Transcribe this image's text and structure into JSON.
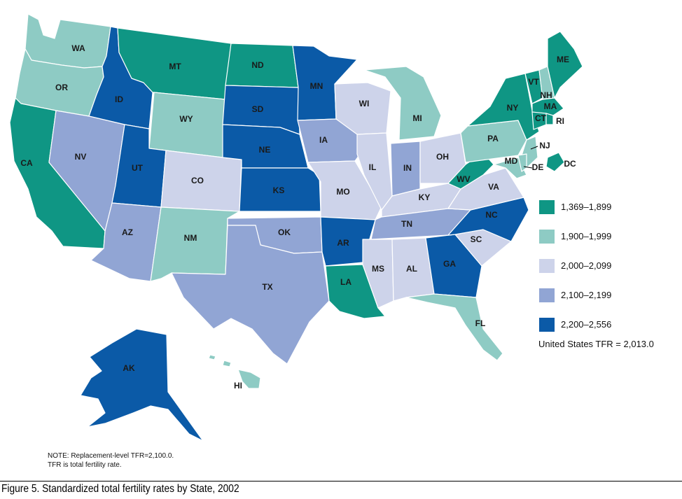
{
  "caption": "Figure 5. Standardized total fertility rates by State, 2002",
  "note_line1": "NOTE: Replacement-level TFR=2,100.0.",
  "note_line2": "TFR is total fertility rate.",
  "us_tfr": "United States TFR = 2,013.0",
  "colors": {
    "c1": "#0f9684",
    "c2": "#8ecbc4",
    "c3": "#cdd3ea",
    "c4": "#91a5d4",
    "c5": "#0b5aa7"
  },
  "legend": [
    {
      "label": "1,369–1,899",
      "class": "c1"
    },
    {
      "label": "1,900–1,999",
      "class": "c2"
    },
    {
      "label": "2,000–2,099",
      "class": "c3"
    },
    {
      "label": "2,100–2,199",
      "class": "c4"
    },
    {
      "label": "2,200–2,556",
      "class": "c5"
    }
  ],
  "states": {
    "WA": {
      "label": "WA",
      "class": "c2"
    },
    "OR": {
      "label": "OR",
      "class": "c2"
    },
    "CA": {
      "label": "CA",
      "class": "c1"
    },
    "ID": {
      "label": "ID",
      "class": "c5"
    },
    "NV": {
      "label": "NV",
      "class": "c4"
    },
    "MT": {
      "label": "MT",
      "class": "c1"
    },
    "WY": {
      "label": "WY",
      "class": "c2"
    },
    "UT": {
      "label": "UT",
      "class": "c5"
    },
    "AZ": {
      "label": "AZ",
      "class": "c4"
    },
    "CO": {
      "label": "CO",
      "class": "c3"
    },
    "NM": {
      "label": "NM",
      "class": "c2"
    },
    "ND": {
      "label": "ND",
      "class": "c1"
    },
    "SD": {
      "label": "SD",
      "class": "c5"
    },
    "NE": {
      "label": "NE",
      "class": "c5"
    },
    "KS": {
      "label": "KS",
      "class": "c5"
    },
    "OK": {
      "label": "OK",
      "class": "c4"
    },
    "TX": {
      "label": "TX",
      "class": "c4"
    },
    "MN": {
      "label": "MN",
      "class": "c5"
    },
    "IA": {
      "label": "IA",
      "class": "c4"
    },
    "MO": {
      "label": "MO",
      "class": "c3"
    },
    "AR": {
      "label": "AR",
      "class": "c5"
    },
    "LA": {
      "label": "LA",
      "class": "c1"
    },
    "WI": {
      "label": "WI",
      "class": "c3"
    },
    "IL": {
      "label": "IL",
      "class": "c3"
    },
    "MI": {
      "label": "MI",
      "class": "c2"
    },
    "IN": {
      "label": "IN",
      "class": "c4"
    },
    "OH": {
      "label": "OH",
      "class": "c3"
    },
    "KY": {
      "label": "KY",
      "class": "c3"
    },
    "TN": {
      "label": "TN",
      "class": "c4"
    },
    "MS": {
      "label": "MS",
      "class": "c3"
    },
    "AL": {
      "label": "AL",
      "class": "c3"
    },
    "GA": {
      "label": "GA",
      "class": "c5"
    },
    "FL": {
      "label": "FL",
      "class": "c2"
    },
    "SC": {
      "label": "SC",
      "class": "c3"
    },
    "NC": {
      "label": "NC",
      "class": "c5"
    },
    "VA": {
      "label": "VA",
      "class": "c3"
    },
    "WV": {
      "label": "WV",
      "class": "c1"
    },
    "PA": {
      "label": "PA",
      "class": "c2"
    },
    "NY": {
      "label": "NY",
      "class": "c1"
    },
    "VT": {
      "label": "VT",
      "class": "c1"
    },
    "NH": {
      "label": "NH",
      "class": "c2"
    },
    "ME": {
      "label": "ME",
      "class": "c1"
    },
    "MA": {
      "label": "MA",
      "class": "c1"
    },
    "CT": {
      "label": "CT",
      "class": "c1"
    },
    "RI": {
      "label": "RI",
      "class": "c1"
    },
    "NJ": {
      "label": "NJ",
      "class": "c2"
    },
    "MD": {
      "label": "MD",
      "class": "c2"
    },
    "DE": {
      "label": "DE",
      "class": "c2"
    },
    "DC": {
      "label": "DC",
      "class": "c1"
    },
    "AK": {
      "label": "AK",
      "class": "c5"
    },
    "HI": {
      "label": "HI",
      "class": "c2"
    }
  }
}
